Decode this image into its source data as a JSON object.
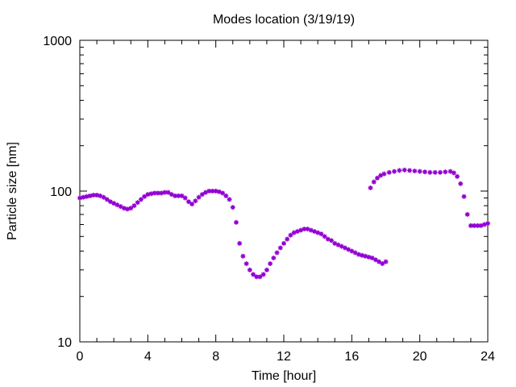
{
  "chart_data": {
    "type": "scatter",
    "title": "Modes location (3/19/19)",
    "xlabel": "Time [hour]",
    "ylabel": "Particle size [nm]",
    "xlim": [
      0,
      24
    ],
    "ylim": [
      10,
      1000
    ],
    "yscale": "log",
    "grid": false,
    "legend": "none",
    "marker_color": "#9400d3",
    "x_ticks": [
      0,
      4,
      8,
      12,
      16,
      20,
      24
    ],
    "x_tick_labels": [
      "0",
      "4",
      "8",
      "12",
      "16",
      "20",
      "24"
    ],
    "y_ticks": [
      10,
      100,
      1000
    ],
    "y_tick_labels": [
      "10",
      "100",
      "1000"
    ],
    "series": [
      {
        "points": [
          [
            0.0,
            90
          ],
          [
            0.2,
            91
          ],
          [
            0.4,
            92
          ],
          [
            0.6,
            93
          ],
          [
            0.8,
            94
          ],
          [
            1.0,
            94
          ],
          [
            1.2,
            93
          ],
          [
            1.4,
            91
          ],
          [
            1.6,
            88
          ],
          [
            1.8,
            85
          ],
          [
            2.0,
            83
          ],
          [
            2.2,
            81
          ],
          [
            2.4,
            79
          ],
          [
            2.6,
            77
          ],
          [
            2.8,
            76
          ],
          [
            3.0,
            77
          ],
          [
            3.2,
            80
          ],
          [
            3.4,
            84
          ],
          [
            3.6,
            88
          ],
          [
            3.8,
            92
          ],
          [
            4.0,
            95
          ],
          [
            4.2,
            96
          ],
          [
            4.4,
            97
          ],
          [
            4.6,
            97
          ],
          [
            4.8,
            97
          ],
          [
            5.0,
            98
          ],
          [
            5.2,
            98
          ],
          [
            5.4,
            95
          ],
          [
            5.6,
            93
          ],
          [
            5.8,
            93
          ],
          [
            6.0,
            93
          ],
          [
            6.2,
            90
          ],
          [
            6.4,
            85
          ],
          [
            6.6,
            82
          ],
          [
            6.8,
            86
          ],
          [
            7.0,
            91
          ],
          [
            7.2,
            95
          ],
          [
            7.4,
            98
          ],
          [
            7.6,
            100
          ],
          [
            7.8,
            100
          ],
          [
            8.0,
            100
          ],
          [
            8.2,
            99
          ],
          [
            8.4,
            97
          ],
          [
            8.6,
            93
          ],
          [
            8.8,
            88
          ],
          [
            9.0,
            78
          ],
          [
            9.2,
            62
          ],
          [
            9.4,
            45
          ],
          [
            9.6,
            37
          ],
          [
            9.8,
            33
          ],
          [
            10.0,
            30
          ],
          [
            10.2,
            28
          ],
          [
            10.4,
            27
          ],
          [
            10.6,
            27
          ],
          [
            10.8,
            28
          ],
          [
            11.0,
            30
          ],
          [
            11.2,
            33
          ],
          [
            11.4,
            36
          ],
          [
            11.6,
            39
          ],
          [
            11.8,
            42
          ],
          [
            12.0,
            45
          ],
          [
            12.2,
            48
          ],
          [
            12.4,
            51
          ],
          [
            12.6,
            53
          ],
          [
            12.8,
            54
          ],
          [
            13.0,
            55
          ],
          [
            13.2,
            56
          ],
          [
            13.4,
            56
          ],
          [
            13.6,
            55
          ],
          [
            13.8,
            54
          ],
          [
            14.0,
            53
          ],
          [
            14.2,
            52
          ],
          [
            14.4,
            50
          ],
          [
            14.6,
            48
          ],
          [
            14.8,
            47
          ],
          [
            15.0,
            45
          ],
          [
            15.2,
            44
          ],
          [
            15.4,
            43
          ],
          [
            15.6,
            42
          ],
          [
            15.8,
            41
          ],
          [
            16.0,
            40
          ],
          [
            16.2,
            39
          ],
          [
            16.4,
            38
          ],
          [
            16.6,
            37.5
          ],
          [
            16.8,
            37
          ],
          [
            17.0,
            36.5
          ],
          [
            17.2,
            36
          ],
          [
            17.4,
            35
          ],
          [
            17.6,
            34
          ],
          [
            17.8,
            33
          ],
          [
            18.0,
            34
          ],
          [
            17.1,
            105
          ],
          [
            17.3,
            115
          ],
          [
            17.5,
            122
          ],
          [
            17.7,
            127
          ],
          [
            17.9,
            130
          ],
          [
            18.2,
            133
          ],
          [
            18.5,
            135
          ],
          [
            18.8,
            137
          ],
          [
            19.1,
            138
          ],
          [
            19.4,
            137
          ],
          [
            19.7,
            136
          ],
          [
            20.0,
            135
          ],
          [
            20.3,
            134
          ],
          [
            20.6,
            133
          ],
          [
            20.9,
            133
          ],
          [
            21.2,
            133
          ],
          [
            21.5,
            134
          ],
          [
            21.8,
            135
          ],
          [
            22.0,
            132
          ],
          [
            22.2,
            125
          ],
          [
            22.4,
            112
          ],
          [
            22.6,
            92
          ],
          [
            22.8,
            70
          ],
          [
            23.0,
            59
          ],
          [
            23.2,
            59
          ],
          [
            23.4,
            59
          ],
          [
            23.6,
            59
          ],
          [
            23.8,
            60
          ],
          [
            24.0,
            61
          ]
        ]
      }
    ]
  }
}
